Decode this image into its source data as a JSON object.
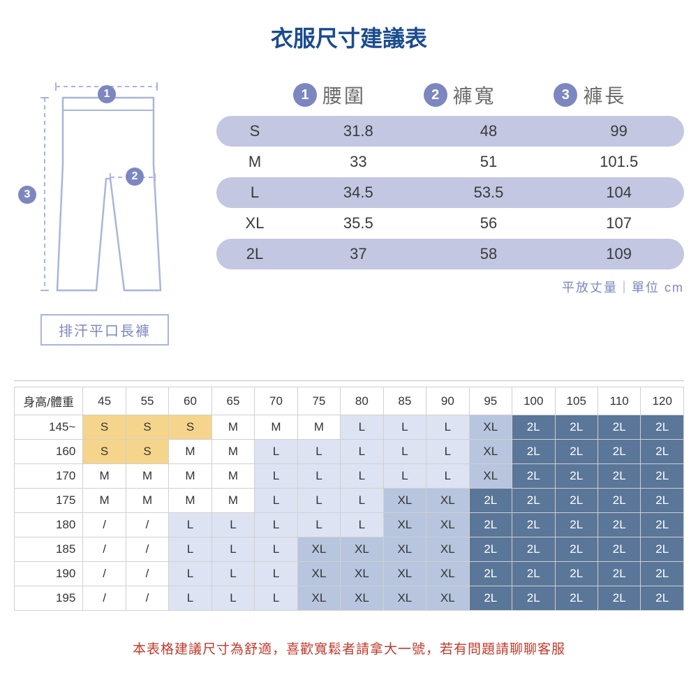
{
  "title": "衣服尺寸建議表",
  "product_label": "排汗平口長褲",
  "diagram": {
    "badge1": "1",
    "badge2": "2",
    "badge3": "3",
    "outline_color": "#a8b5de",
    "guide_color": "#a8b5de"
  },
  "measure_headers": [
    {
      "num": "1",
      "label": "腰圍"
    },
    {
      "num": "2",
      "label": "褲寬"
    },
    {
      "num": "3",
      "label": "褲長"
    }
  ],
  "measure_rows": [
    {
      "size": "S",
      "vals": [
        "31.8",
        "48",
        "99"
      ],
      "shaded": true
    },
    {
      "size": "M",
      "vals": [
        "33",
        "51",
        "101.5"
      ],
      "shaded": false
    },
    {
      "size": "L",
      "vals": [
        "34.5",
        "53.5",
        "104"
      ],
      "shaded": true
    },
    {
      "size": "XL",
      "vals": [
        "35.5",
        "56",
        "107"
      ],
      "shaded": false
    },
    {
      "size": "2L",
      "vals": [
        "37",
        "58",
        "109"
      ],
      "shaded": true
    }
  ],
  "note_right": "平放丈量｜單位 cm",
  "grid": {
    "corner": "身高/體重",
    "weights": [
      "45",
      "55",
      "60",
      "65",
      "70",
      "75",
      "80",
      "85",
      "90",
      "95",
      "100",
      "105",
      "110",
      "120"
    ],
    "heights": [
      "145~",
      "160",
      "170",
      "175",
      "180",
      "185",
      "190",
      "195"
    ],
    "cells": [
      [
        "S",
        "S",
        "S",
        "M",
        "M",
        "M",
        "L",
        "L",
        "L",
        "XL",
        "2L",
        "2L",
        "2L",
        "2L"
      ],
      [
        "S",
        "S",
        "M",
        "M",
        "L",
        "L",
        "L",
        "L",
        "L",
        "XL",
        "2L",
        "2L",
        "2L",
        "2L"
      ],
      [
        "M",
        "M",
        "M",
        "M",
        "L",
        "L",
        "L",
        "L",
        "L",
        "XL",
        "2L",
        "2L",
        "2L",
        "2L"
      ],
      [
        "M",
        "M",
        "M",
        "M",
        "L",
        "L",
        "L",
        "XL",
        "XL",
        "2L",
        "2L",
        "2L",
        "2L",
        "2L"
      ],
      [
        "/",
        "/",
        "L",
        "L",
        "L",
        "L",
        "L",
        "XL",
        "XL",
        "2L",
        "2L",
        "2L",
        "2L",
        "2L"
      ],
      [
        "/",
        "/",
        "L",
        "L",
        "L",
        "XL",
        "XL",
        "XL",
        "XL",
        "2L",
        "2L",
        "2L",
        "2L",
        "2L"
      ],
      [
        "/",
        "/",
        "L",
        "L",
        "L",
        "XL",
        "XL",
        "XL",
        "XL",
        "2L",
        "2L",
        "2L",
        "2L",
        "2L"
      ],
      [
        "/",
        "/",
        "L",
        "L",
        "L",
        "XL",
        "XL",
        "XL",
        "XL",
        "2L",
        "2L",
        "2L",
        "2L",
        "2L"
      ]
    ],
    "palette": {
      "S": {
        "bg": "#f5d58b",
        "fg": "#333333"
      },
      "M": {
        "bg": "#ffffff",
        "fg": "#333333"
      },
      "L": {
        "bg": "#dde3f2",
        "fg": "#333333"
      },
      "XL": {
        "bg": "#b7c5de",
        "fg": "#333333"
      },
      "2L": {
        "bg": "#5a7698",
        "fg": "#ffffff"
      },
      "/": {
        "bg": "#ffffff",
        "fg": "#333333"
      }
    }
  },
  "footer": "本表格建議尺寸為舒適，喜歡寬鬆者請拿大一號，若有問題請聊聊客服",
  "colors": {
    "title": "#1a4b8f",
    "accent": "#7c87c0",
    "row_shade": "#c3c7e2",
    "footer": "#c0392b"
  }
}
